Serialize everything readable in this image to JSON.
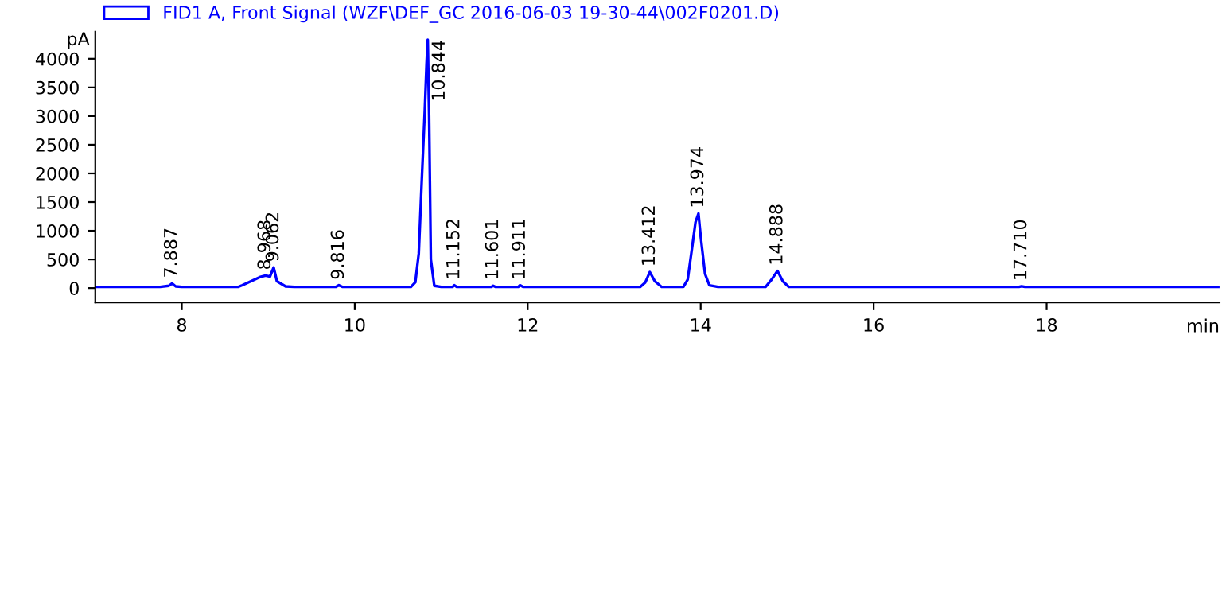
{
  "chart_data": {
    "type": "line",
    "ylabel": "pA",
    "xlabel": "min",
    "legend": "top left",
    "grid": false,
    "marker": "none",
    "line_style": "solid",
    "xlim": [
      7.0,
      20.0
    ],
    "xticks": [
      8,
      10,
      12,
      14,
      16,
      18
    ],
    "ylim": [
      -250,
      4470
    ],
    "yticks": [
      0,
      500,
      1000,
      1500,
      2000,
      2500,
      3000,
      3500,
      4000
    ],
    "series": [
      {
        "name": "FID1 A, Front Signal (WZF\\DEF_GC 2016-06-03 19-30-44\\002F0201.D)",
        "color": "#0000ff",
        "x": [
          7.0,
          7.75,
          7.85,
          7.887,
          7.93,
          8.0,
          8.65,
          8.7,
          8.8,
          8.9,
          8.968,
          9.02,
          9.062,
          9.1,
          9.2,
          9.3,
          9.78,
          9.816,
          9.86,
          10.65,
          10.7,
          10.74,
          10.77,
          10.79,
          10.81,
          10.83,
          10.844,
          10.86,
          10.88,
          10.92,
          11.0,
          11.13,
          11.152,
          11.18,
          11.58,
          11.601,
          11.63,
          11.89,
          11.911,
          11.95,
          13.3,
          13.36,
          13.412,
          13.47,
          13.55,
          13.8,
          13.85,
          13.9,
          13.94,
          13.974,
          14.0,
          14.05,
          14.1,
          14.2,
          14.75,
          14.82,
          14.888,
          14.95,
          15.02,
          17.68,
          17.71,
          17.75,
          20.0
        ],
        "values": [
          20,
          20,
          40,
          80,
          30,
          20,
          20,
          50,
          120,
          190,
          220,
          200,
          360,
          120,
          30,
          20,
          20,
          50,
          20,
          20,
          100,
          600,
          1700,
          2400,
          3100,
          3900,
          4330,
          3000,
          500,
          40,
          20,
          20,
          50,
          20,
          20,
          40,
          20,
          20,
          50,
          20,
          20,
          100,
          280,
          120,
          20,
          20,
          150,
          700,
          1150,
          1300,
          900,
          250,
          50,
          20,
          20,
          150,
          300,
          120,
          20,
          20,
          30,
          20,
          20
        ]
      }
    ],
    "annotations": [
      {
        "text": "7.887",
        "x": 7.887,
        "y": 80
      },
      {
        "text": "8.968",
        "x": 8.968,
        "y": 220
      },
      {
        "text": "9.062",
        "x": 9.062,
        "y": 360
      },
      {
        "text": "9.816",
        "x": 9.816,
        "y": 50
      },
      {
        "text": "10.844",
        "x": 10.844,
        "y": 4330
      },
      {
        "text": "11.152",
        "x": 11.152,
        "y": 50
      },
      {
        "text": "11.601",
        "x": 11.601,
        "y": 40
      },
      {
        "text": "11.911",
        "x": 11.911,
        "y": 50
      },
      {
        "text": "13.412",
        "x": 13.412,
        "y": 280
      },
      {
        "text": "13.974",
        "x": 13.974,
        "y": 1300
      },
      {
        "text": "14.888",
        "x": 14.888,
        "y": 300
      },
      {
        "text": "17.710",
        "x": 17.71,
        "y": 30
      }
    ]
  }
}
